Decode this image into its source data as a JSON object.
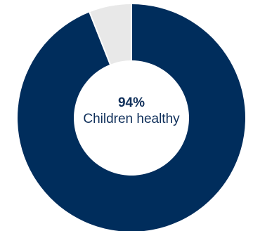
{
  "chart_data": {
    "type": "pie",
    "donut": true,
    "slices": [
      {
        "label": "Children healthy",
        "value": 94,
        "color": "#002d5c"
      },
      {
        "label": "",
        "value": 6,
        "color": "#e8e8e8"
      }
    ],
    "center": {
      "value": "94%",
      "label": "Children healthy"
    }
  }
}
